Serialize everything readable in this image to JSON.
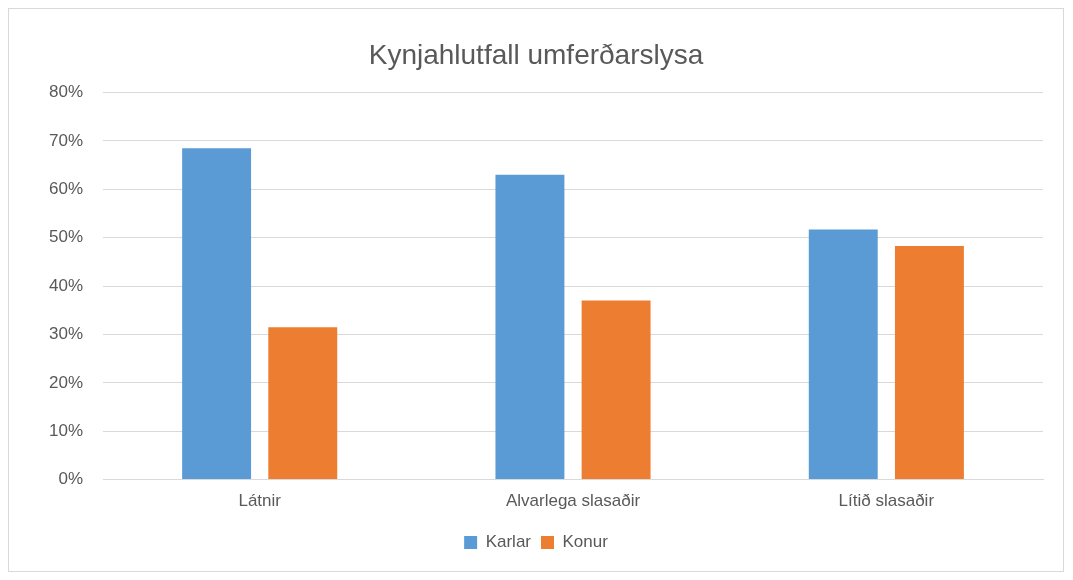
{
  "chart_data": {
    "type": "bar",
    "title": "Kynjahlutfall umferðarslysa",
    "categories": [
      "Látnir",
      "Alvarlega slasaðir",
      "Lítið slasaðir"
    ],
    "series": [
      {
        "name": "Karlar",
        "color": "#5b9bd5",
        "values": [
          68.5,
          63,
          51.7
        ]
      },
      {
        "name": "Konur",
        "color": "#ed7d31",
        "values": [
          31.5,
          37,
          48.3
        ]
      }
    ],
    "ylim": [
      0,
      80
    ],
    "yticks": [
      {
        "value": 0,
        "label": "0%"
      },
      {
        "value": 10,
        "label": "10%"
      },
      {
        "value": 20,
        "label": "20%"
      },
      {
        "value": 30,
        "label": "30%"
      },
      {
        "value": 40,
        "label": "40%"
      },
      {
        "value": 50,
        "label": "50%"
      },
      {
        "value": 60,
        "label": "60%"
      },
      {
        "value": 70,
        "label": "70%"
      },
      {
        "value": 80,
        "label": "80%"
      }
    ],
    "grid": "y",
    "legend": "bottom"
  }
}
